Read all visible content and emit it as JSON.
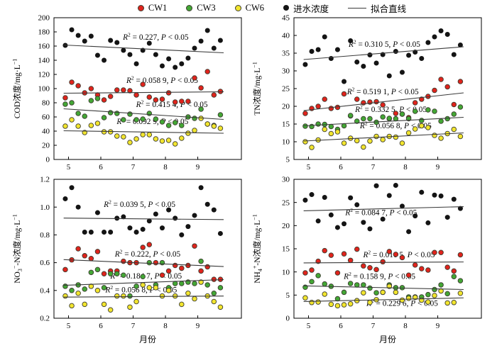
{
  "legend": {
    "items": [
      {
        "label": "CW1",
        "marker": "dot",
        "color": "#e0231c"
      },
      {
        "label": "CW3",
        "marker": "dot",
        "color": "#43a735"
      },
      {
        "label": "CW6",
        "marker": "dot",
        "color": "#f2e52e"
      },
      {
        "label": "进水浓度",
        "marker": "dot",
        "color": "#141414"
      },
      {
        "label": "拟合直线",
        "marker": "line",
        "color": "#3a3a3a"
      }
    ]
  },
  "chart_data": {
    "type": "scatter",
    "xlabel": "月份",
    "x_lim": [
      4.55,
      10.35
    ],
    "x_ticks": [
      5,
      6,
      7,
      8,
      9
    ],
    "x": [
      4.9,
      5.1,
      5.3,
      5.5,
      5.7,
      5.9,
      6.1,
      6.3,
      6.5,
      6.7,
      6.9,
      7.1,
      7.3,
      7.5,
      7.7,
      7.9,
      8.1,
      8.3,
      8.5,
      8.7,
      8.9,
      9.1,
      9.3,
      9.5,
      9.7
    ],
    "series_colors": {
      "进水浓度": "#141414",
      "CW1": "#e0231c",
      "CW3": "#43a735",
      "CW6": "#f2e52e"
    },
    "fit_line_color": "#3a3a3a",
    "fit_x_range": [
      4.85,
      9.8
    ],
    "charts": [
      {
        "id": "cod",
        "ylabel_parts": [
          {
            "t": "COD浓度/mg·L"
          },
          {
            "t": "−1",
            "pos": "sup"
          }
        ],
        "ymin": 0,
        "ymax": 200,
        "ystep": 20,
        "xlabel": "",
        "series": {
          "进水浓度": [
            161,
            183,
            175,
            167,
            174,
            147,
            140,
            168,
            165,
            154,
            148,
            135,
            154,
            164,
            148,
            132,
            142,
            130,
            135,
            143,
            157,
            167,
            182,
            157,
            168
          ],
          "CW1": [
            87,
            109,
            104,
            94,
            100,
            91,
            84,
            89,
            98,
            98,
            97,
            91,
            106,
            88,
            84,
            85,
            94,
            81,
            82,
            82,
            115,
            101,
            124,
            91,
            96
          ],
          "CW3": [
            78,
            80,
            65,
            61,
            83,
            86,
            59,
            66,
            65,
            56,
            64,
            56,
            57,
            65,
            57,
            53,
            48,
            52,
            48,
            60,
            58,
            71,
            50,
            48,
            63
          ],
          "CW6": [
            47,
            56,
            47,
            38,
            48,
            51,
            39,
            39,
            33,
            32,
            24,
            29,
            35,
            35,
            29,
            26,
            27,
            22,
            30,
            37,
            41,
            58,
            50,
            47,
            44
          ]
        },
        "fits": [
          {
            "series": "进水浓度",
            "y1": 161.5,
            "y2": 150.5,
            "r2": "0.227",
            "p": "< 0.05",
            "tx": 7.7,
            "ty": 169
          },
          {
            "series": "CW1",
            "y1": 93.5,
            "y2": 95.5,
            "r2": "0.058 9",
            "p": "< 0.05",
            "tx": 7.9,
            "ty": 108
          },
          {
            "series": "CW3",
            "y1": 71.5,
            "y2": 56.5,
            "r2": "0.415 4",
            "p": "< 0.05",
            "tx": 8.2,
            "ty": 74
          },
          {
            "series": "CW6",
            "y1": 40.5,
            "y2": 37,
            "r2": "0.092 9",
            "p": "< 0.05",
            "tx": 7.6,
            "ty": 50
          }
        ]
      },
      {
        "id": "tn",
        "ylabel_parts": [
          {
            "t": "TN浓度/mg·L"
          },
          {
            "t": "−1",
            "pos": "sup"
          }
        ],
        "ymin": 5,
        "ymax": 45,
        "ystep": 5,
        "xlabel": "",
        "series": {
          "进水浓度": [
            31.8,
            35.5,
            36,
            39.6,
            33.5,
            36,
            27,
            38.5,
            32.5,
            31.3,
            34.5,
            32.2,
            34.6,
            28.6,
            35.5,
            29.6,
            34.4,
            35.3,
            33.5,
            38,
            39.6,
            41.3,
            40.3,
            34.6,
            37.3
          ],
          "CW1": [
            18,
            19.4,
            20,
            22,
            19.4,
            19.7,
            23.5,
            17.3,
            22,
            21,
            21.2,
            21.3,
            20.4,
            16.5,
            18,
            17.8,
            16.8,
            21,
            22,
            22.8,
            24.5,
            27.6,
            25.5,
            20.5,
            27
          ],
          "CW3": [
            14.4,
            14.3,
            15,
            14.9,
            14.3,
            13.5,
            14.5,
            17.4,
            15.8,
            16.5,
            16.5,
            15.5,
            17,
            16.6,
            16.5,
            17.8,
            16.5,
            18.6,
            16,
            19,
            18.6,
            15.8,
            16.5,
            17.8,
            19.8
          ],
          "CW6": [
            10,
            8.4,
            10.5,
            13.5,
            12.3,
            12.8,
            9.6,
            11,
            10.3,
            8.5,
            10.2,
            11.5,
            10.6,
            11.5,
            11.3,
            9.6,
            12.5,
            13.6,
            14.5,
            14,
            11.8,
            11,
            12.3,
            13.5,
            11.5
          ]
        },
        "fits": [
          {
            "series": "进水浓度",
            "y1": 33.2,
            "y2": 36.8,
            "r2": "0.310 5",
            "p": "< 0.05",
            "tx": 7.35,
            "ty": 36.8
          },
          {
            "series": "CW1",
            "y1": 18.8,
            "y2": 23.8,
            "r2": "0.519 1",
            "p": "< 0.05",
            "tx": 7.3,
            "ty": 23.4
          },
          {
            "series": "CW3",
            "y1": 14.5,
            "y2": 16.9,
            "r2": "0.332 5",
            "p": "< 0.05",
            "tx": 7.55,
            "ty": 18.4
          },
          {
            "series": "CW6",
            "y1": 10.2,
            "y2": 12.5,
            "r2": "0.056 8",
            "p": "< 0.05",
            "tx": 7.7,
            "ty": 13.8
          }
        ]
      },
      {
        "id": "no3n",
        "ylabel_parts": [
          {
            "t": "NO"
          },
          {
            "t": "3",
            "pos": "sub"
          },
          {
            "t": "−",
            "pos": "sup"
          },
          {
            "t": "-N浓度/mg·L"
          },
          {
            "t": "−1",
            "pos": "sup"
          }
        ],
        "ymin": 0.2,
        "ymax": 1.2,
        "ystep": 0.2,
        "xlabel": "月份",
        "series": {
          "进水浓度": [
            1.06,
            1.14,
            1.0,
            0.82,
            0.82,
            0.96,
            0.82,
            0.82,
            0.92,
            0.93,
            0.85,
            0.82,
            0.84,
            0.9,
            0.95,
            0.85,
            0.98,
            0.92,
            0.8,
            0.86,
            0.94,
            1.14,
            1.02,
            0.98,
            0.81
          ],
          "CW1": [
            0.55,
            0.62,
            0.7,
            0.65,
            0.63,
            0.68,
            0.52,
            0.54,
            0.54,
            0.61,
            0.6,
            0.6,
            0.71,
            0.73,
            0.6,
            0.51,
            0.54,
            0.58,
            0.56,
            0.58,
            0.72,
            0.54,
            0.57,
            0.48,
            0.48
          ],
          "CW3": [
            0.43,
            0.4,
            0.44,
            0.41,
            0.53,
            0.55,
            0.42,
            0.52,
            0.52,
            0.51,
            0.36,
            0.43,
            0.5,
            0.6,
            0.44,
            0.6,
            0.42,
            0.45,
            0.45,
            0.46,
            0.45,
            0.61,
            0.44,
            0.38,
            0.42
          ],
          "CW6": [
            0.36,
            0.29,
            0.38,
            0.3,
            0.43,
            0.4,
            0.3,
            0.26,
            0.36,
            0.36,
            0.28,
            0.32,
            0.44,
            0.42,
            0.42,
            0.36,
            0.4,
            0.36,
            0.3,
            0.38,
            0.34,
            0.46,
            0.36,
            0.32,
            0.28
          ]
        },
        "fits": [
          {
            "series": "进水浓度",
            "y1": 0.921,
            "y2": 0.91,
            "r2": "0.039 5",
            "p": "< 0.05",
            "tx": 7.2,
            "ty": 1.0
          },
          {
            "series": "CW1",
            "y1": 0.622,
            "y2": 0.572,
            "r2": "0.222",
            "p": "< 0.05",
            "tx": 7.45,
            "ty": 0.645
          },
          {
            "series": "CW3",
            "y1": 0.437,
            "y2": 0.478,
            "r2": "0.184 7",
            "p": "< 0.05",
            "tx": 7.4,
            "ty": 0.485
          },
          {
            "series": "CW6",
            "y1": 0.352,
            "y2": 0.36,
            "r2": "0.056 8",
            "p": "< 0.05",
            "tx": 7.25,
            "ty": 0.385
          }
        ]
      },
      {
        "id": "nh4n",
        "ylabel_parts": [
          {
            "t": "NH"
          },
          {
            "t": "4",
            "pos": "sub"
          },
          {
            "t": "+",
            "pos": "sup"
          },
          {
            "t": "-N浓度/mg·L"
          },
          {
            "t": "−1",
            "pos": "sup"
          }
        ],
        "ymin": 0,
        "ymax": 30,
        "ystep": 5,
        "xlabel": "月份",
        "series": {
          "进水浓度": [
            25.5,
            26.7,
            21,
            26.1,
            22.3,
            19.6,
            20.4,
            26,
            24.5,
            20.7,
            19.3,
            28.6,
            21.4,
            26.5,
            28.7,
            24.2,
            18.7,
            22.1,
            27.2,
            20.6,
            26.6,
            26.4,
            21.8,
            25.7,
            23.7
          ],
          "CW1": [
            9.8,
            10.4,
            12.3,
            14.6,
            13.6,
            9.8,
            13.9,
            12.5,
            14.9,
            11.3,
            10.9,
            10.5,
            12.2,
            14.4,
            13.8,
            13.1,
            9.3,
            11.5,
            10.7,
            10.4,
            14.2,
            14.2,
            11,
            10.2,
            13.7
          ],
          "CW3": [
            6.7,
            7.9,
            9.2,
            7.4,
            6.9,
            4.2,
            5.6,
            7.5,
            7.2,
            7.2,
            6.5,
            5.5,
            5.6,
            7.2,
            6.6,
            6.6,
            4.6,
            4.6,
            4.6,
            5.1,
            6.2,
            7.2,
            5.3,
            9,
            8.1
          ],
          "CW6": [
            4.4,
            3.4,
            3.5,
            5.2,
            3,
            2.7,
            2.9,
            3.1,
            3.8,
            5.5,
            3.4,
            4,
            5.6,
            6.9,
            5.6,
            3.9,
            4.3,
            4.5,
            3.9,
            3.5,
            4.9,
            5.9,
            3.3,
            3.4,
            5.4
          ]
        },
        "fits": [
          {
            "series": "进水浓度",
            "y1": 23.2,
            "y2": 24.1,
            "r2": "0.084 7",
            "p": "< 0.05",
            "tx": 7.25,
            "ty": 22.3
          },
          {
            "series": "CW1",
            "y1": 11.95,
            "y2": 12.15,
            "r2": "0.016 5",
            "p": "< 0.05",
            "tx": 7.8,
            "ty": 13.2
          },
          {
            "series": "CW3",
            "y1": 7.0,
            "y2": 6.2,
            "r2": "0.158 9",
            "p": "< 0.05",
            "tx": 7.2,
            "ty": 8.5
          },
          {
            "series": "CW6",
            "y1": 3.6,
            "y2": 4.4,
            "r2": "0.229 6",
            "p": "< 0.05",
            "tx": 7.9,
            "ty": 2.7
          }
        ]
      }
    ]
  }
}
